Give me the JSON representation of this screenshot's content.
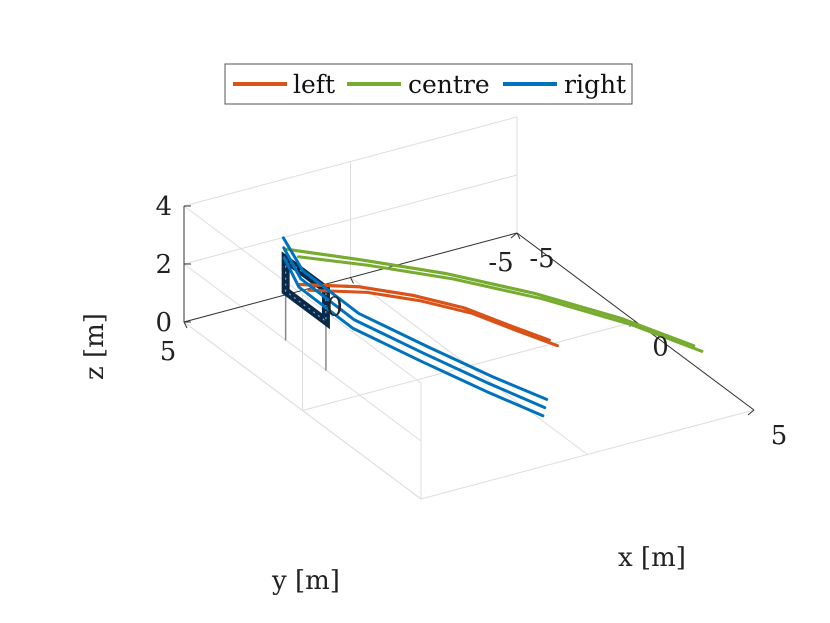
{
  "chart_data": {
    "type": "line",
    "dimensions": 3,
    "title": "",
    "xlabel": "x [m]",
    "ylabel": "y [m]",
    "zlabel": "z [m]",
    "xlim": [
      -5,
      5
    ],
    "ylim": [
      -5,
      5
    ],
    "zlim": [
      0,
      4
    ],
    "x_ticks": [
      "-5",
      "0",
      "5"
    ],
    "y_ticks": [
      "-5",
      "0",
      "5"
    ],
    "z_ticks": [
      "0",
      "2",
      "4"
    ],
    "grid": true,
    "legend_position": "top",
    "legend_orientation": "horizontal",
    "colors": {
      "left": "#D95319",
      "centre": "#77AC30",
      "right": "#0072BD",
      "gate_frame": "#0b2a4a",
      "grid": "#dddddd",
      "axis": "#333333"
    },
    "gate": {
      "x": [
        -3.1,
        -1.4
      ],
      "y": 3.3,
      "z": [
        1.7,
        2.8
      ],
      "post_base_z": 0
    },
    "series": [
      {
        "name": "left",
        "color": "#D95319",
        "trajectories": [
          {
            "x": [
              -2.6,
              -2.1,
              -1.5,
              -0.9,
              -0.3,
              0.3
            ],
            "y": [
              3.2,
              1.8,
              0.6,
              -0.5,
              -1.4,
              -2.2
            ],
            "z": [
              2.2,
              2.0,
              1.7,
              1.3,
              0.8,
              0.4
            ]
          },
          {
            "x": [
              -2.5,
              -2.0,
              -1.4,
              -0.8,
              -0.2,
              0.4
            ],
            "y": [
              3.3,
              1.9,
              0.7,
              -0.4,
              -1.3,
              -2.1
            ],
            "z": [
              2.3,
              2.1,
              1.8,
              1.4,
              0.9,
              0.5
            ]
          },
          {
            "x": [
              -2.4,
              -1.9,
              -1.3,
              -0.7,
              -0.1,
              0.5
            ],
            "y": [
              3.1,
              1.7,
              0.5,
              -0.6,
              -1.5,
              -2.3
            ],
            "z": [
              2.1,
              1.9,
              1.6,
              1.2,
              0.7,
              0.3
            ]
          }
        ]
      },
      {
        "name": "centre",
        "color": "#77AC30",
        "trajectories": [
          {
            "x": [
              -3.0,
              -2.5,
              -1.7,
              -0.6,
              0.7,
              1.9
            ],
            "y": [
              3.3,
              1.5,
              -0.5,
              -2.4,
              -4.1,
              -5.4
            ],
            "z": [
              3.2,
              2.6,
              2.0,
              1.4,
              0.8,
              0.2
            ]
          },
          {
            "x": [
              -2.9,
              -2.4,
              -1.6,
              -0.5,
              0.8,
              2.0
            ],
            "y": [
              3.4,
              1.6,
              -0.4,
              -2.3,
              -4.0,
              -5.3
            ],
            "z": [
              3.3,
              2.7,
              2.1,
              1.5,
              0.9,
              0.3
            ]
          },
          {
            "x": [
              -2.7,
              -2.3,
              -1.5,
              -0.4,
              0.9,
              2.1
            ],
            "y": [
              3.2,
              1.4,
              -0.6,
              -2.5,
              -4.2,
              -5.5
            ],
            "z": [
              3.1,
              2.5,
              1.9,
              1.3,
              0.7,
              0.1
            ]
          }
        ]
      },
      {
        "name": "right",
        "color": "#0072BD",
        "trajectories": [
          {
            "x": [
              -3.9,
              -2.8,
              -1.0,
              0.8,
              2.4,
              3.7
            ],
            "y": [
              2.8,
              3.0,
              2.6,
              1.8,
              1.0,
              0.3
            ],
            "z": [
              2.9,
              2.5,
              2.0,
              1.7,
              1.4,
              1.2
            ]
          },
          {
            "x": [
              -3.6,
              -2.6,
              -0.9,
              0.9,
              2.5,
              3.9
            ],
            "y": [
              3.0,
              3.2,
              2.8,
              2.0,
              1.2,
              0.5
            ],
            "z": [
              2.8,
              2.4,
              1.9,
              1.6,
              1.3,
              1.1
            ]
          },
          {
            "x": [
              -3.3,
              -2.4,
              -0.7,
              1.1,
              2.7,
              4.1
            ],
            "y": [
              3.2,
              3.4,
              3.0,
              2.2,
              1.4,
              0.7
            ],
            "z": [
              2.7,
              2.3,
              1.8,
              1.5,
              1.2,
              1.0
            ]
          }
        ]
      }
    ]
  }
}
